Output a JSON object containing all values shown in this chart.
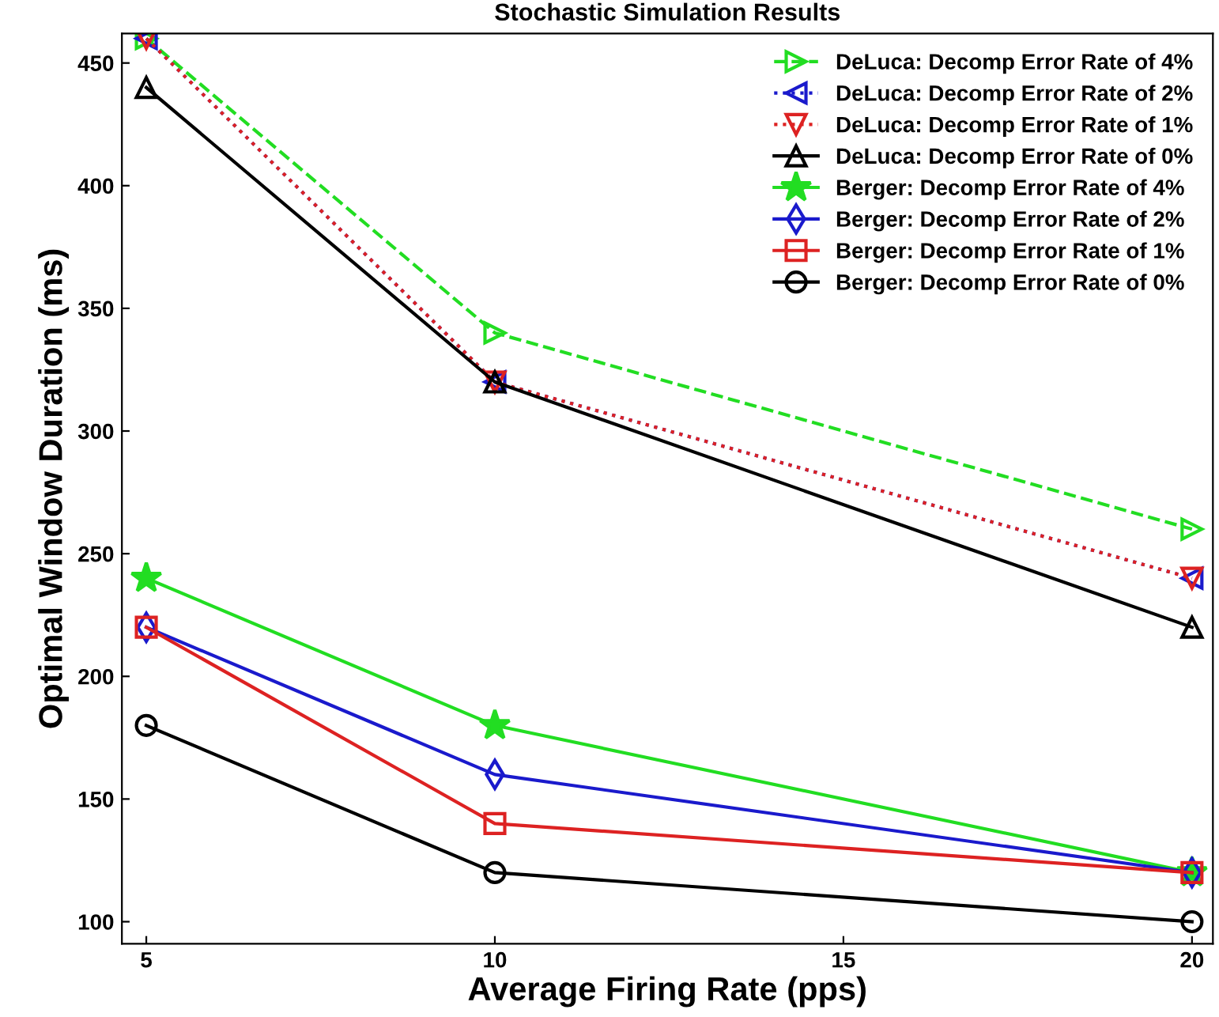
{
  "chart_data": {
    "type": "line",
    "title": "Stochastic Simulation Results",
    "xlabel": "Average Firing Rate (pps)",
    "ylabel": "Optimal Window Duration (ms)",
    "x": [
      5,
      10,
      20
    ],
    "xlim": [
      4.65,
      20.3
    ],
    "xticks": [
      5,
      10,
      15,
      20
    ],
    "ylim": [
      91,
      462
    ],
    "yticks": [
      100,
      150,
      200,
      250,
      300,
      350,
      400,
      450
    ],
    "grid": false,
    "legend": "top right",
    "series": [
      {
        "name": "DeLuca: Decomp Error Rate of 4%",
        "color": "#22dd22",
        "values": [
          460,
          340,
          260
        ],
        "marker": "triangle-right",
        "line_style": "dashed"
      },
      {
        "name": "DeLuca: Decomp Error Rate of 2%",
        "color": "#1a1acc",
        "values": [
          460,
          320,
          240
        ],
        "marker": "triangle-left",
        "line_style": "dotted"
      },
      {
        "name": "DeLuca: Decomp Error Rate of 1%",
        "color": "#dd2222",
        "values": [
          460,
          320,
          240
        ],
        "marker": "triangle-down",
        "line_style": "dotted"
      },
      {
        "name": "DeLuca: Decomp Error Rate of 0%",
        "color": "#000000",
        "values": [
          440,
          320,
          220
        ],
        "marker": "triangle",
        "line_style": "solid"
      },
      {
        "name": "Berger: Decomp Error Rate of 4%",
        "color": "#22dd22",
        "values": [
          240,
          180,
          120
        ],
        "marker": "star",
        "line_style": "solid"
      },
      {
        "name": "Berger: Decomp Error Rate of 2%",
        "color": "#1a1acc",
        "values": [
          220,
          160,
          120
        ],
        "marker": "diamond",
        "line_style": "solid"
      },
      {
        "name": "Berger: Decomp Error Rate of 1%",
        "color": "#dd2222",
        "values": [
          220,
          140,
          120
        ],
        "marker": "square",
        "line_style": "solid"
      },
      {
        "name": "Berger: Decomp Error Rate of 0%",
        "color": "#000000",
        "values": [
          180,
          120,
          100
        ],
        "marker": "circle",
        "line_style": "solid"
      }
    ]
  }
}
